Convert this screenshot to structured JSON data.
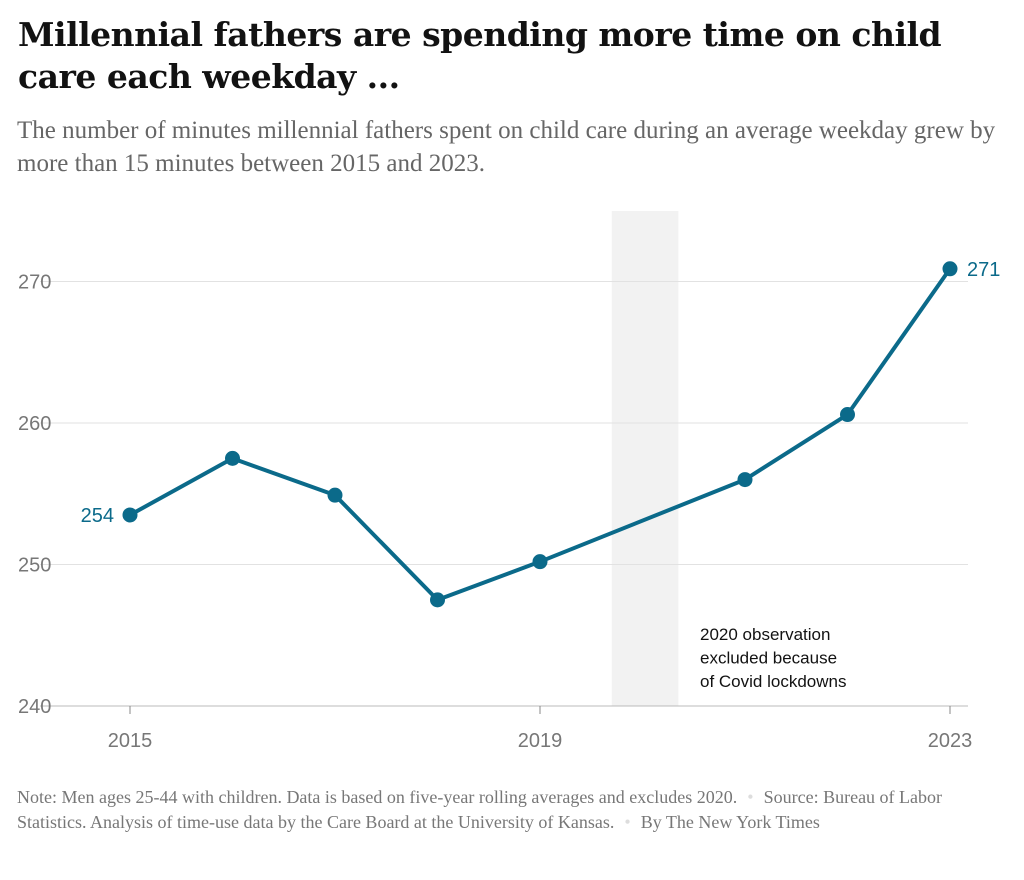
{
  "title": "Millennial fathers are spending more time on child care each weekday ...",
  "subtitle": "The number of minutes millennial fathers spent on child care during an average weekday grew by more than 15 minutes between 2015 and 2023.",
  "chart_data": {
    "type": "line",
    "x": [
      2015,
      2016,
      2017,
      2018,
      2019,
      2021,
      2022,
      2023
    ],
    "series": [
      {
        "name": "Minutes on child care",
        "values": [
          253.5,
          257.5,
          254.9,
          247.5,
          250.2,
          256.0,
          260.6,
          270.9
        ]
      }
    ],
    "ylim": [
      240,
      275
    ],
    "xlim": [
      2015,
      2023
    ],
    "yticks": [
      240,
      250,
      260,
      270
    ],
    "ytick_labels": [
      "240",
      "250",
      "260",
      "270"
    ],
    "xticks": [
      2015,
      2019,
      2023
    ],
    "xtick_labels": [
      "2015",
      "2019",
      "2023"
    ],
    "data_labels": [
      {
        "x": 2015,
        "text": "254"
      },
      {
        "x": 2023,
        "text": "271"
      }
    ],
    "excluded_band": [
      2019.7,
      2020.35
    ],
    "annotation": [
      "2020 observation",
      "excluded because",
      "of Covid lockdowns"
    ],
    "grid": true,
    "line_color": "#0b6a8a",
    "band_color": "#f2f2f2"
  },
  "footer": {
    "note": "Note: Men ages 25-44 with children. Data is based on five-year rolling averages and excludes 2020.",
    "source": "Source: Bureau of Labor Statistics. Analysis of time-use data by the Care Board at the University of Kansas.",
    "byline": "By The New York Times"
  }
}
